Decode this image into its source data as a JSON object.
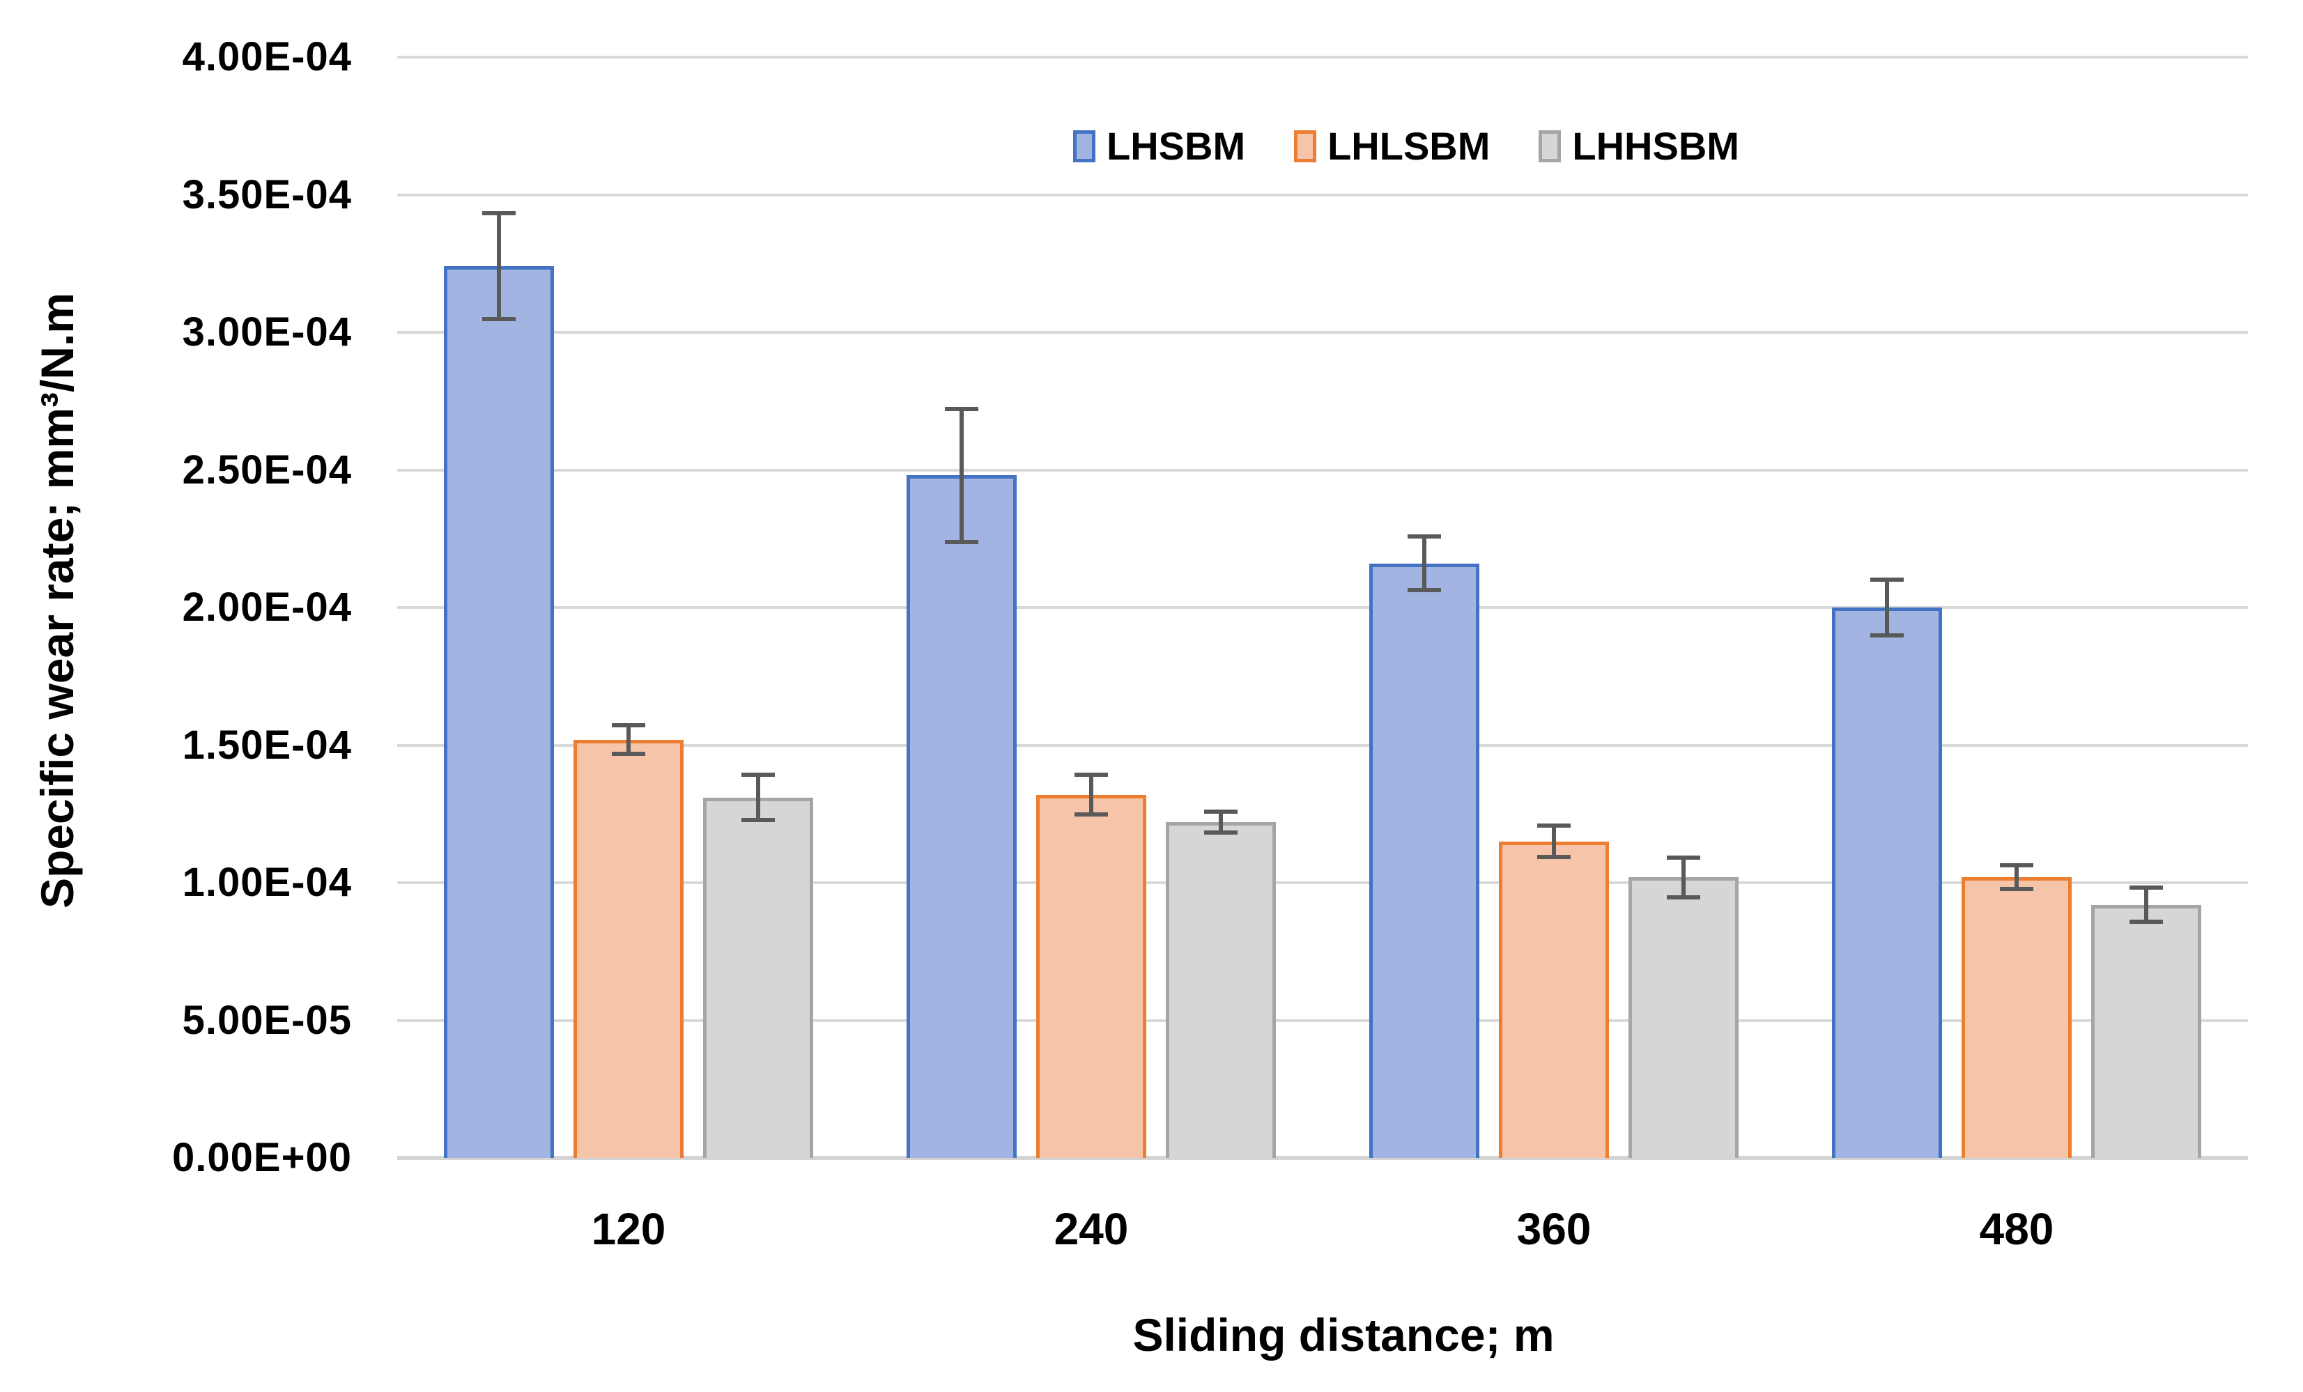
{
  "chart_data": {
    "type": "bar",
    "title": "",
    "xlabel": "Sliding distance; m",
    "ylabel": "Specific wear rate; mm³/N.m",
    "categories": [
      "120",
      "240",
      "360",
      "480"
    ],
    "series": [
      {
        "name": "LHSBM",
        "fill": "#A2B5E2",
        "border": "#4472C4",
        "values": [
          0.000324,
          0.000248,
          0.000216,
          0.0002
        ],
        "errors": [
          2e-05,
          2.5e-05,
          1.05e-05,
          1.1e-05
        ]
      },
      {
        "name": "LHLSBM",
        "fill": "#F6C5A9",
        "border": "#ED7D31",
        "values": [
          0.000152,
          0.000132,
          0.000115,
          0.000102
        ],
        "errors": [
          6e-06,
          8e-06,
          6.5e-06,
          5e-06
        ]
      },
      {
        "name": "LHHSBM",
        "fill": "#D6D6D6",
        "border": "#A5A5A5",
        "values": [
          0.000131,
          0.000122,
          0.000102,
          9.2e-05
        ],
        "errors": [
          9e-06,
          4.5e-06,
          8e-06,
          7e-06
        ]
      }
    ],
    "ylim": [
      0,
      0.0004
    ],
    "ytick_labels": [
      "0.00E+00",
      "5.00E-05",
      "1.00E-04",
      "1.50E-04",
      "2.00E-04",
      "2.50E-04",
      "3.00E-04",
      "3.50E-04",
      "4.00E-04"
    ],
    "grid": true,
    "legend_position": "top-center",
    "error_color": "#595959",
    "gridline_color": "#D9D9D9",
    "axis_line_color": "#D4D4D4",
    "text_color": "#000000"
  }
}
